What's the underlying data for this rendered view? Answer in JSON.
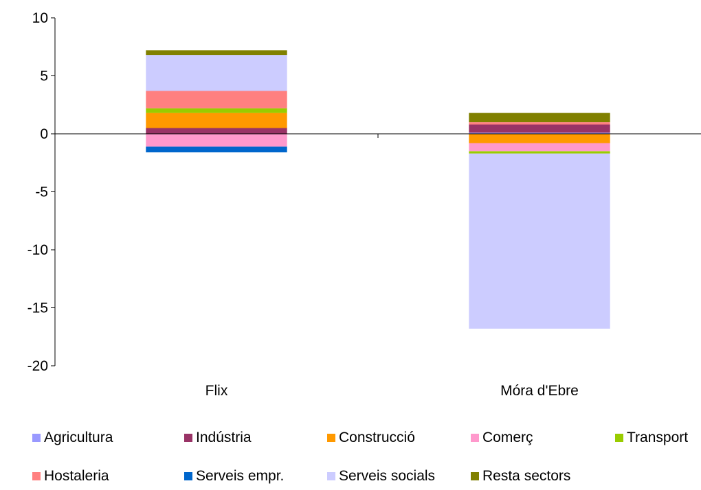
{
  "chart_data": {
    "type": "bar",
    "stacked": true,
    "categories": [
      "Flix",
      "Móra d'Ebre"
    ],
    "ylim": [
      -20,
      10
    ],
    "yticks": [
      10,
      5,
      0,
      -5,
      -10,
      -15,
      -20
    ],
    "grid": false,
    "legend": "bottom",
    "series": [
      {
        "name": "Agricultura",
        "color": "#9999FF",
        "values": [
          0.0,
          0.1
        ]
      },
      {
        "name": "Indústria",
        "color": "#993366",
        "values": [
          0.5,
          0.7
        ]
      },
      {
        "name": "Construcció",
        "color": "#FF9900",
        "values": [
          1.3,
          -0.8
        ]
      },
      {
        "name": "Comerç",
        "color": "#FF99CC",
        "values": [
          -1.1,
          -0.7
        ]
      },
      {
        "name": "Transport",
        "color": "#99CC00",
        "values": [
          0.4,
          -0.2
        ]
      },
      {
        "name": "Hostaleria",
        "color": "#FF8080",
        "values": [
          1.5,
          0.2
        ]
      },
      {
        "name": "Serveis empr.",
        "color": "#0066CC",
        "values": [
          -0.5,
          0.0
        ]
      },
      {
        "name": "Serveis socials",
        "color": "#CCCCFF",
        "values": [
          3.1,
          -15.1
        ]
      },
      {
        "name": "Resta sectors",
        "color": "#808000",
        "values": [
          0.4,
          0.8
        ]
      }
    ]
  }
}
